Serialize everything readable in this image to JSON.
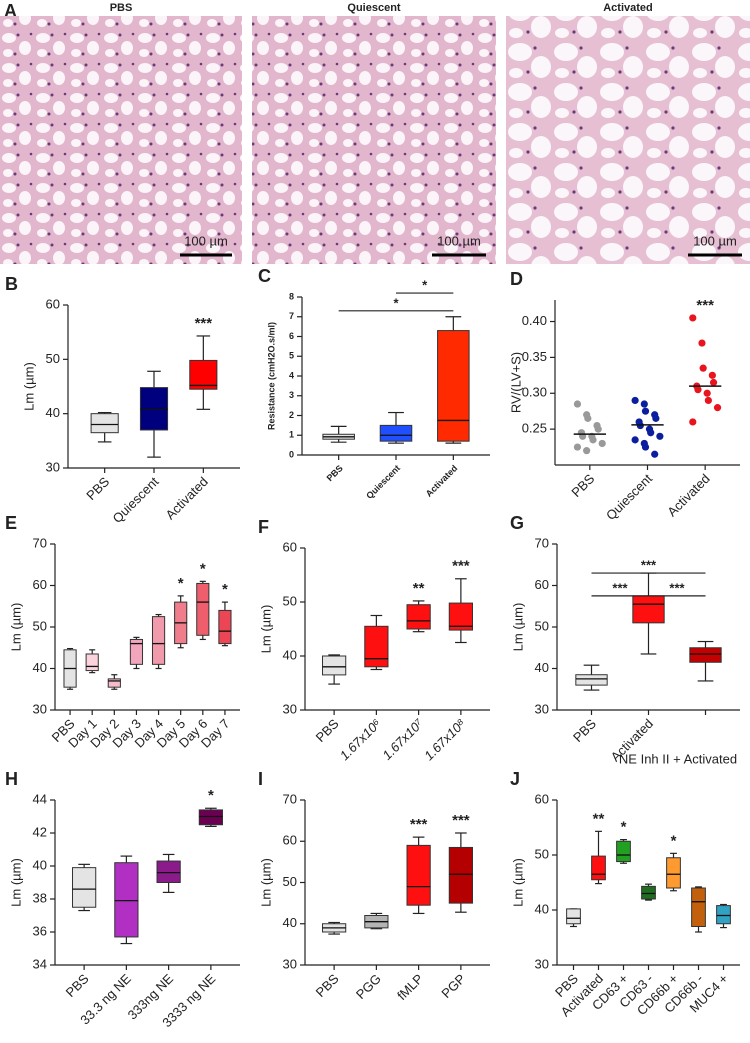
{
  "panel_a": {
    "label": "A",
    "images": [
      {
        "title": "PBS",
        "scale_bar": "100 µm"
      },
      {
        "title": "Quiescent",
        "scale_bar": "100 µm"
      },
      {
        "title": "Activated",
        "scale_bar": "100 µm"
      }
    ]
  },
  "chart_data": [
    {
      "type": "box",
      "label": "B",
      "ylabel": "Lm (µm)",
      "categories": [
        "PBS",
        "Quiescent",
        "Activated"
      ],
      "boxes": [
        {
          "min": 34.8,
          "q1": 36.5,
          "median": 38,
          "q3": 40,
          "max": 40.2
        },
        {
          "min": 32,
          "q1": 37,
          "median": 40.8,
          "q3": 44.8,
          "max": 47.8
        },
        {
          "min": 40.8,
          "q1": 44.5,
          "median": 45.2,
          "q3": 49.8,
          "max": 54.3
        }
      ],
      "colors": [
        "#e4e4e4",
        "#00007f",
        "#ff0000"
      ],
      "stars": [
        null,
        null,
        "***"
      ],
      "ylim": [
        30,
        60
      ],
      "yticks": [
        30,
        40,
        50,
        60
      ]
    },
    {
      "type": "box",
      "label": "C",
      "ylabel": "Resistance (cmH2O.s/ml)",
      "categories": [
        "PBS",
        "Quiescent",
        "Activated"
      ],
      "boxes": [
        {
          "min": 0.65,
          "q1": 0.8,
          "median": 0.92,
          "q3": 1.05,
          "max": 1.45
        },
        {
          "min": 0.6,
          "q1": 0.7,
          "median": 1.0,
          "q3": 1.5,
          "max": 2.15
        },
        {
          "min": 0.6,
          "q1": 0.7,
          "median": 1.75,
          "q3": 6.3,
          "max": 7.0
        }
      ],
      "colors": [
        "#e4e4e4",
        "#1f4fff",
        "#ff2a00"
      ],
      "comparisons": [
        {
          "from": 1,
          "to": 2,
          "y": 8.2,
          "label": "*"
        },
        {
          "from": 0,
          "to": 2,
          "y": 7.3,
          "label": "*"
        }
      ],
      "ylim": [
        0,
        8
      ],
      "yticks": [
        0,
        1,
        2,
        3,
        4,
        5,
        6,
        7,
        8
      ]
    },
    {
      "type": "strip",
      "label": "D",
      "ylabel": "RV/(LV+S)",
      "categories": [
        "PBS",
        "Quiescent",
        "Activated"
      ],
      "points": [
        [
          0.285,
          0.27,
          0.265,
          0.255,
          0.25,
          0.245,
          0.24,
          0.24,
          0.235,
          0.23,
          0.225,
          0.22
        ],
        [
          0.29,
          0.285,
          0.275,
          0.27,
          0.265,
          0.26,
          0.255,
          0.25,
          0.245,
          0.24,
          0.235,
          0.23,
          0.225,
          0.215
        ],
        [
          0.405,
          0.37,
          0.335,
          0.325,
          0.315,
          0.31,
          0.305,
          0.3,
          0.29,
          0.28,
          0.26
        ]
      ],
      "means": [
        0.243,
        0.256,
        0.31
      ],
      "colors": [
        "#999999",
        "#0a1e9e",
        "#e8141e"
      ],
      "stars": [
        null,
        null,
        "***"
      ],
      "ylim": [
        0.2,
        0.43
      ],
      "yticks": [
        0.25,
        {
          "value": 0.3,
          "label": "0.30"
        },
        0.35,
        {
          "value": 0.4,
          "label": "0.40"
        }
      ]
    },
    {
      "type": "box",
      "label": "E",
      "ylabel": "Lm (µm)",
      "categories": [
        "PBS",
        "Day 1",
        "Day 2",
        "Day 3",
        "Day 4",
        "Day 5",
        "Day 6",
        "Day 7"
      ],
      "boxes": [
        {
          "min": 35,
          "q1": 35.5,
          "median": 40,
          "q3": 44.5,
          "max": 44.8
        },
        {
          "min": 39,
          "q1": 39.5,
          "median": 40.5,
          "q3": 43.5,
          "max": 44.5
        },
        {
          "min": 35,
          "q1": 35.5,
          "median": 37,
          "q3": 37.5,
          "max": 38.5
        },
        {
          "min": 40,
          "q1": 41,
          "median": 46,
          "q3": 47,
          "max": 47.5
        },
        {
          "min": 40,
          "q1": 41,
          "median": 46,
          "q3": 52.5,
          "max": 53
        },
        {
          "min": 45,
          "q1": 46,
          "median": 51,
          "q3": 56,
          "max": 57.5
        },
        {
          "min": 47,
          "q1": 48,
          "median": 56,
          "q3": 60.5,
          "max": 61
        },
        {
          "min": 45.5,
          "q1": 46,
          "median": 49,
          "q3": 54,
          "max": 56
        }
      ],
      "colors": [
        "#e4e4e4",
        "#fbd3dc",
        "#f6bccb",
        "#f2a6bd",
        "#f09aac",
        "#f07d8c",
        "#ee5e6c",
        "#ec4656"
      ],
      "stars": [
        null,
        null,
        null,
        null,
        null,
        "*",
        "*",
        "*"
      ],
      "ylim": [
        30,
        70
      ],
      "yticks": [
        30,
        40,
        50,
        60,
        70
      ]
    },
    {
      "type": "box",
      "label": "F",
      "ylabel": "Lm (µm)",
      "categories": [
        "PBS",
        "1.67x10⁶",
        "1.67x10⁷",
        "1.67x10⁸"
      ],
      "boxes": [
        {
          "min": 34.8,
          "q1": 36.5,
          "median": 38,
          "q3": 40,
          "max": 40.2
        },
        {
          "min": 37.5,
          "q1": 38,
          "median": 39.5,
          "q3": 45.5,
          "max": 47.5
        },
        {
          "min": 44.5,
          "q1": 45,
          "median": 46.5,
          "q3": 49.5,
          "max": 50.2
        },
        {
          "min": 42.5,
          "q1": 44.8,
          "median": 45.5,
          "q3": 49.8,
          "max": 54.3
        }
      ],
      "colors": [
        "#e4e4e4",
        "#ff1010",
        "#ff1010",
        "#ff1010"
      ],
      "stars": [
        null,
        null,
        "**",
        "***"
      ],
      "ylim": [
        30,
        60
      ],
      "yticks": [
        30,
        40,
        50,
        60
      ]
    },
    {
      "type": "box",
      "label": "G",
      "ylabel": "Lm (µm)",
      "categories": [
        "PBS",
        "Activated",
        "NE Inh II + Activated"
      ],
      "boxes": [
        {
          "min": 34.8,
          "q1": 36,
          "median": 37.5,
          "q3": 38.5,
          "max": 40.8
        },
        {
          "min": 43.5,
          "q1": 51,
          "median": 55.5,
          "q3": 57.5,
          "max": 63
        },
        {
          "min": 37,
          "q1": 41.5,
          "median": 43.5,
          "q3": 45,
          "max": 46.5
        }
      ],
      "colors": [
        "#e4e4e4",
        "#ff1010",
        "#c40000"
      ],
      "comparisons": [
        {
          "from": 0,
          "to": 2,
          "y": 63,
          "label": "***"
        },
        {
          "from": 0,
          "to": 1,
          "y": 57.5,
          "label": "***"
        },
        {
          "from": 1,
          "to": 2,
          "y": 57.5,
          "label": "***"
        }
      ],
      "ylim": [
        30,
        70
      ],
      "yticks": [
        30,
        40,
        50,
        60,
        70
      ]
    },
    {
      "type": "box",
      "label": "H",
      "ylabel": "Lm (µm)",
      "categories": [
        "PBS",
        "33.3 ng NE",
        "333ng NE",
        "3333 ng NE"
      ],
      "boxes": [
        {
          "min": 37.3,
          "q1": 37.5,
          "median": 38.6,
          "q3": 39.9,
          "max": 40.1
        },
        {
          "min": 35.3,
          "q1": 35.7,
          "median": 37.9,
          "q3": 40.2,
          "max": 40.6
        },
        {
          "min": 38.4,
          "q1": 39,
          "median": 39.6,
          "q3": 40.3,
          "max": 40.7
        },
        {
          "min": 42.4,
          "q1": 42.5,
          "median": 43,
          "q3": 43.4,
          "max": 43.5
        }
      ],
      "colors": [
        "#e4e4e4",
        "#b22fc4",
        "#8b1a8b",
        "#6b0052"
      ],
      "stars": [
        null,
        null,
        null,
        "*"
      ],
      "ylim": [
        34,
        44
      ],
      "yticks": [
        34,
        36,
        38,
        40,
        42,
        44
      ]
    },
    {
      "type": "box",
      "label": "I",
      "ylabel": "Lm (µm)",
      "categories": [
        "PBS",
        "PGG",
        "fMLP",
        "PGP"
      ],
      "boxes": [
        {
          "min": 37.5,
          "q1": 38,
          "median": 39,
          "q3": 40,
          "max": 40.3
        },
        {
          "min": 38.8,
          "q1": 39,
          "median": 40.5,
          "q3": 42,
          "max": 42.5
        },
        {
          "min": 42.5,
          "q1": 44.5,
          "median": 49,
          "q3": 59,
          "max": 61
        },
        {
          "min": 42.8,
          "q1": 45,
          "median": 52,
          "q3": 58.5,
          "max": 62
        }
      ],
      "colors": [
        "#e4e4e4",
        "#b4b4b4",
        "#ff1010",
        "#b40000"
      ],
      "stars": [
        null,
        null,
        "***",
        "***"
      ],
      "ylim": [
        30,
        70
      ],
      "yticks": [
        30,
        40,
        50,
        60,
        70
      ]
    },
    {
      "type": "box",
      "label": "J",
      "ylabel": "Lm (µm)",
      "categories": [
        "PBS",
        "Activated",
        "CD63 +",
        "CD63 -",
        "CD66b +",
        "CD66b -",
        "MUC4 +"
      ],
      "boxes": [
        {
          "min": 37,
          "q1": 37.5,
          "median": 38.5,
          "q3": 40.2,
          "max": 40.2
        },
        {
          "min": 44.8,
          "q1": 45.5,
          "median": 46.5,
          "q3": 49.8,
          "max": 54.3
        },
        {
          "min": 48.5,
          "q1": 48.8,
          "median": 50,
          "q3": 52.5,
          "max": 52.8
        },
        {
          "min": 41.8,
          "q1": 42,
          "median": 43,
          "q3": 44.3,
          "max": 44.7
        },
        {
          "min": 43.5,
          "q1": 44,
          "median": 46.5,
          "q3": 49.5,
          "max": 50.3
        },
        {
          "min": 36,
          "q1": 37,
          "median": 41.5,
          "q3": 44,
          "max": 44.2
        },
        {
          "min": 36.8,
          "q1": 37.5,
          "median": 39,
          "q3": 40.8,
          "max": 41
        }
      ],
      "colors": [
        "#e4e4e4",
        "#ff1010",
        "#22a022",
        "#1f6e1f",
        "#ff9a30",
        "#c2600e",
        "#30a2c4"
      ],
      "stars": [
        null,
        "**",
        "*",
        null,
        "*",
        null,
        null
      ],
      "ylim": [
        30,
        60
      ],
      "yticks": [
        30,
        40,
        50,
        60
      ]
    }
  ]
}
